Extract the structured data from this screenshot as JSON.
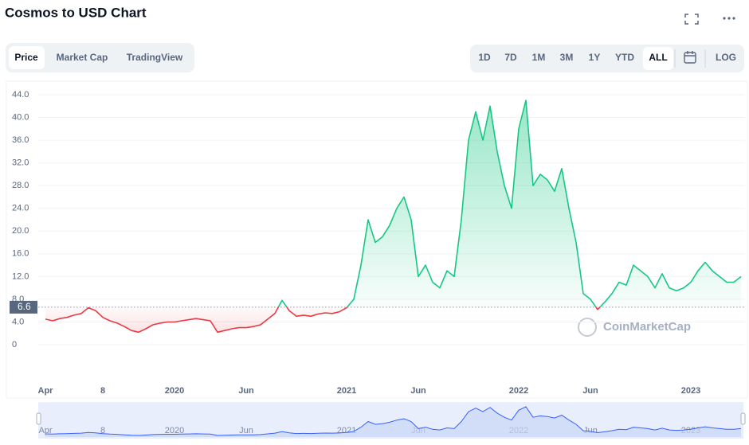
{
  "chart_data": {
    "type": "line",
    "title": "Cosmos to USD Chart",
    "tabs": [
      "Price",
      "Market Cap",
      "TradingView"
    ],
    "ranges": [
      "1D",
      "7D",
      "1M",
      "3M",
      "1Y",
      "YTD",
      "ALL"
    ],
    "log_button": "LOG",
    "watermark": "CoinMarketCap",
    "color_up": "#16c784",
    "color_down": "#ea3943",
    "reference_line": 6.6,
    "ylim": [
      0,
      44
    ],
    "yticks": [
      0,
      {
        "value": 4,
        "label": "4.0"
      },
      {
        "value": 8,
        "label": "8.0"
      },
      {
        "value": 12,
        "label": "12.0"
      },
      {
        "value": 16,
        "label": "16.0"
      },
      {
        "value": 20,
        "label": "20.0"
      },
      {
        "value": 24,
        "label": "24.0"
      },
      {
        "value": 28,
        "label": "28.0"
      },
      {
        "value": 32,
        "label": "32.0"
      },
      {
        "value": 36,
        "label": "36.0"
      },
      {
        "value": 40,
        "label": "40.0"
      },
      {
        "value": 44,
        "label": "44.0"
      }
    ],
    "grid": true,
    "categories": [
      "Apr",
      null,
      null,
      null,
      null,
      null,
      null,
      null,
      "8",
      null,
      null,
      null,
      null,
      null,
      null,
      null,
      null,
      null,
      "2020",
      null,
      null,
      null,
      null,
      null,
      null,
      null,
      null,
      null,
      "Jun",
      null,
      null,
      null,
      null,
      null,
      null,
      null,
      null,
      null,
      null,
      null,
      null,
      null,
      "2021",
      null,
      null,
      null,
      null,
      null,
      null,
      null,
      null,
      null,
      "Jun",
      null,
      null,
      null,
      null,
      null,
      null,
      null,
      null,
      null,
      null,
      null,
      null,
      null,
      "2022",
      null,
      null,
      null,
      null,
      null,
      null,
      null,
      null,
      null,
      "Jun",
      null,
      null,
      null,
      null,
      null,
      null,
      null,
      null,
      null,
      null,
      null,
      null,
      null,
      "2023",
      null,
      null,
      null,
      null,
      null,
      null,
      null
    ],
    "values": [
      4.5,
      4.2,
      4.6,
      4.8,
      5.2,
      5.5,
      6.5,
      6.0,
      4.8,
      4.2,
      3.8,
      3.2,
      2.5,
      2.2,
      2.8,
      3.5,
      3.8,
      4.0,
      4.0,
      4.2,
      4.4,
      4.6,
      4.4,
      4.2,
      2.2,
      2.5,
      2.8,
      3.0,
      3.0,
      3.2,
      3.5,
      4.5,
      5.5,
      7.8,
      6.0,
      5.0,
      5.2,
      5.0,
      5.4,
      5.6,
      5.5,
      5.8,
      6.5,
      8.0,
      14,
      22,
      18,
      19,
      21,
      24,
      26,
      22,
      12,
      14,
      11,
      10,
      13,
      12,
      22,
      36,
      41,
      36,
      42,
      34,
      28,
      24,
      38,
      43,
      28,
      30,
      29,
      27,
      31,
      24,
      18,
      9,
      8,
      6.2,
      7.5,
      9,
      11,
      10.5,
      14,
      13,
      12,
      10,
      12.5,
      10,
      9.5,
      10,
      11,
      13,
      14.5,
      13,
      12,
      11,
      11,
      12
    ]
  }
}
